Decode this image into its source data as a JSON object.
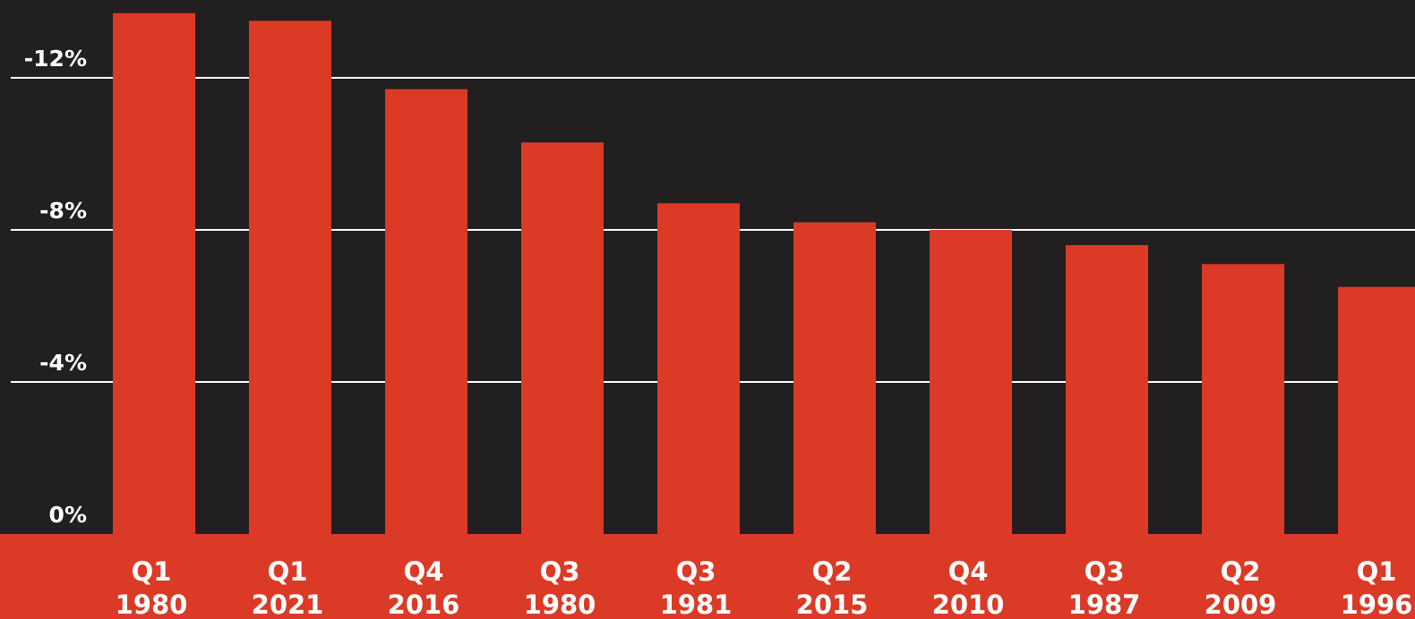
{
  "chart_data": {
    "type": "bar",
    "title": "",
    "xlabel": "",
    "ylabel": "",
    "ylim": [
      0,
      -14
    ],
    "y_ticks": [
      {
        "value": 0,
        "label": "0%"
      },
      {
        "value": -4,
        "label": "-4%"
      },
      {
        "value": -8,
        "label": "-8%"
      },
      {
        "value": -12,
        "label": "-12%"
      }
    ],
    "grid": true,
    "categories": [
      {
        "quarter": "Q1",
        "year": "1980"
      },
      {
        "quarter": "Q1",
        "year": "2021"
      },
      {
        "quarter": "Q4",
        "year": "2016"
      },
      {
        "quarter": "Q3",
        "year": "1980"
      },
      {
        "quarter": "Q3",
        "year": "1981"
      },
      {
        "quarter": "Q2",
        "year": "2015"
      },
      {
        "quarter": "Q4",
        "year": "2010"
      },
      {
        "quarter": "Q3",
        "year": "1987"
      },
      {
        "quarter": "Q2",
        "year": "2009"
      },
      {
        "quarter": "Q1",
        "year": "1996"
      }
    ],
    "values": [
      -13.7,
      -13.5,
      -11.7,
      -10.3,
      -8.7,
      -8.2,
      -8.0,
      -7.6,
      -7.1,
      -6.5
    ],
    "colors": {
      "background": "#221f20",
      "bar": "#db3a27",
      "grid": "#ffffff",
      "text": "#ffffff"
    }
  }
}
